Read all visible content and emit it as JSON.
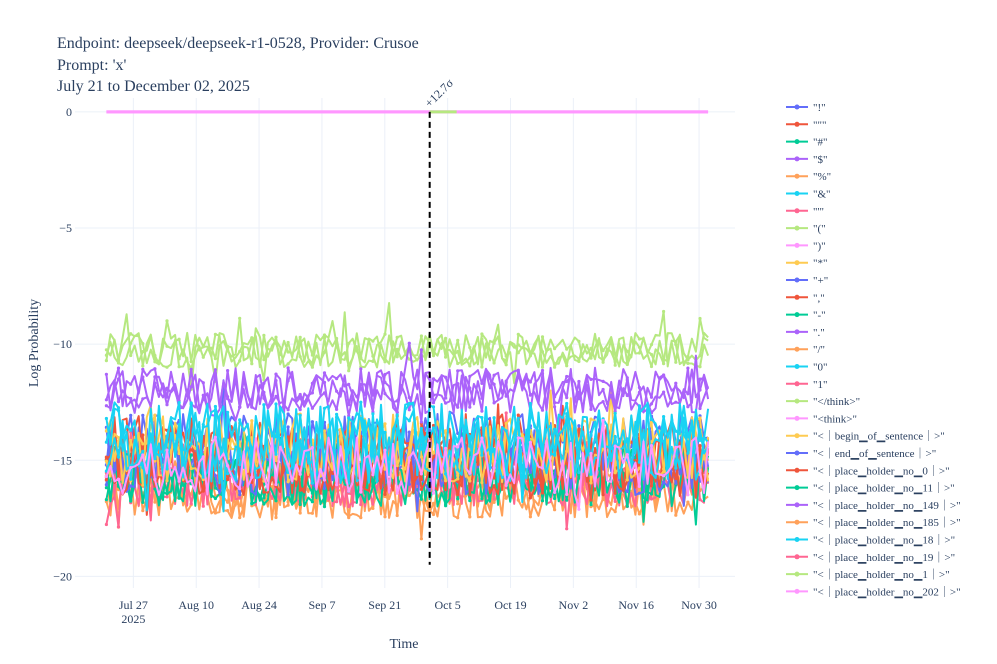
{
  "chart_data": {
    "type": "line",
    "title_lines": [
      "Endpoint: deepseek/deepseek-r1-0528, Provider: Crusoe",
      "Prompt: 'x'",
      "July 21 to December 02, 2025"
    ],
    "xlabel": "Time",
    "ylabel": "Log Probability",
    "x_range": [
      "2025-07-14",
      "2025-12-08"
    ],
    "ylim": [
      -20.5,
      0.6
    ],
    "grid": true,
    "legend_position": "right",
    "x_ticks": [
      {
        "date": "2025-07-27",
        "label": "Jul 27",
        "sublabel": "2025"
      },
      {
        "date": "2025-08-10",
        "label": "Aug 10"
      },
      {
        "date": "2025-08-24",
        "label": "Aug 24"
      },
      {
        "date": "2025-09-07",
        "label": "Sep 7"
      },
      {
        "date": "2025-09-21",
        "label": "Sep 21"
      },
      {
        "date": "2025-10-05",
        "label": "Oct 5"
      },
      {
        "date": "2025-10-19",
        "label": "Oct 19"
      },
      {
        "date": "2025-11-02",
        "label": "Nov 2"
      },
      {
        "date": "2025-11-16",
        "label": "Nov 16"
      },
      {
        "date": "2025-11-30",
        "label": "Nov 30"
      }
    ],
    "y_ticks": [
      {
        "value": 0,
        "label": "0"
      },
      {
        "value": -5,
        "label": "−5"
      },
      {
        "value": -10,
        "label": "−10"
      },
      {
        "value": -15,
        "label": "−15"
      },
      {
        "value": -20,
        "label": "−20"
      }
    ],
    "series": [
      {
        "name": "\"!\"",
        "color": "#636efa",
        "typical": [
          -16.5,
          -13.5
        ]
      },
      {
        "name": "\"\"\"",
        "color": "#ef553b",
        "typical": [
          -16.5,
          -13
        ]
      },
      {
        "name": "\"#\"",
        "color": "#00cc96",
        "typical": [
          -17,
          -14
        ]
      },
      {
        "name": "\"$\"",
        "color": "#ab63fa",
        "typical": [
          -13,
          -11
        ]
      },
      {
        "name": "\"%\"",
        "color": "#ffa15a",
        "typical": [
          -17.5,
          -15
        ]
      },
      {
        "name": "\"&\"",
        "color": "#19d3f3",
        "typical": [
          -16,
          -12.5
        ]
      },
      {
        "name": "\"'\"",
        "color": "#ff6692",
        "typical": [
          -17,
          -14.5
        ]
      },
      {
        "name": "\"(\"",
        "color": "#b6e880",
        "typical": [
          -11,
          -9.5
        ]
      },
      {
        "name": "\")\"",
        "color": "#ff97ff",
        "typical": [
          -16.5,
          -14
        ]
      },
      {
        "name": "\"*\"",
        "color": "#fecb52",
        "typical": [
          -16,
          -13
        ]
      },
      {
        "name": "\"+\"",
        "color": "#636efa",
        "typical": [
          -16,
          -13
        ]
      },
      {
        "name": "\",\"",
        "color": "#ef553b",
        "typical": [
          -16.5,
          -13.5
        ]
      },
      {
        "name": "\"-\"",
        "color": "#00cc96",
        "typical": [
          -17,
          -14.5
        ]
      },
      {
        "name": "\".\"",
        "color": "#ab63fa",
        "typical": [
          -13,
          -11
        ]
      },
      {
        "name": "\"/\"",
        "color": "#ffa15a",
        "typical": [
          -17.5,
          -15
        ]
      },
      {
        "name": "\"0\"",
        "color": "#19d3f3",
        "typical": [
          -16,
          -12.5
        ]
      },
      {
        "name": "\"1\"",
        "color": "#ff6692",
        "typical": [
          -17,
          -14
        ]
      },
      {
        "name": "\"</think>\"",
        "color": "#b6e880",
        "typical": [
          -11,
          -9.5
        ]
      },
      {
        "name": "\"<think>\"",
        "color": "#ff97ff",
        "constant": 0
      },
      {
        "name": "\"<｜begin▁of▁sentence｜>\"",
        "color": "#fecb52",
        "typical": [
          -16,
          -13
        ]
      },
      {
        "name": "\"<｜end▁of▁sentence｜>\"",
        "color": "#636efa",
        "typical": [
          -16,
          -13
        ]
      },
      {
        "name": "\"<｜place▁holder▁no▁0｜>\"",
        "color": "#ef553b",
        "typical": [
          -16.5,
          -13.5
        ]
      },
      {
        "name": "\"<｜place▁holder▁no▁11｜>\"",
        "color": "#00cc96",
        "typical": [
          -17,
          -14.5
        ]
      },
      {
        "name": "\"<｜place▁holder▁no▁149｜>\"",
        "color": "#ab63fa",
        "typical": [
          -13,
          -11
        ]
      },
      {
        "name": "\"<｜place▁holder▁no▁185｜>\"",
        "color": "#ffa15a",
        "typical": [
          -17.5,
          -15
        ]
      },
      {
        "name": "\"<｜place▁holder▁no▁18｜>\"",
        "color": "#19d3f3",
        "typical": [
          -16,
          -12.5
        ]
      },
      {
        "name": "\"<｜place▁holder▁no▁19｜>\"",
        "color": "#ff6692",
        "typical": [
          -17,
          -14
        ]
      },
      {
        "name": "\"<｜place▁holder▁no▁1｜>\"",
        "color": "#b6e880",
        "typical": [
          -11,
          -9.5
        ]
      },
      {
        "name": "\"<｜place▁holder▁no▁202｜>\"",
        "color": "#ff97ff",
        "constant": 0
      }
    ],
    "annotations": [
      {
        "type": "vline",
        "date": "2025-10-01",
        "y_from": -19.5,
        "y_to": 0,
        "text": "+12.7σ",
        "style": "dashed",
        "color": "#000000"
      }
    ],
    "highlight_segment": {
      "color": "#b6e880",
      "from": "2025-10-01",
      "to": "2025-10-07",
      "value": 0
    }
  }
}
